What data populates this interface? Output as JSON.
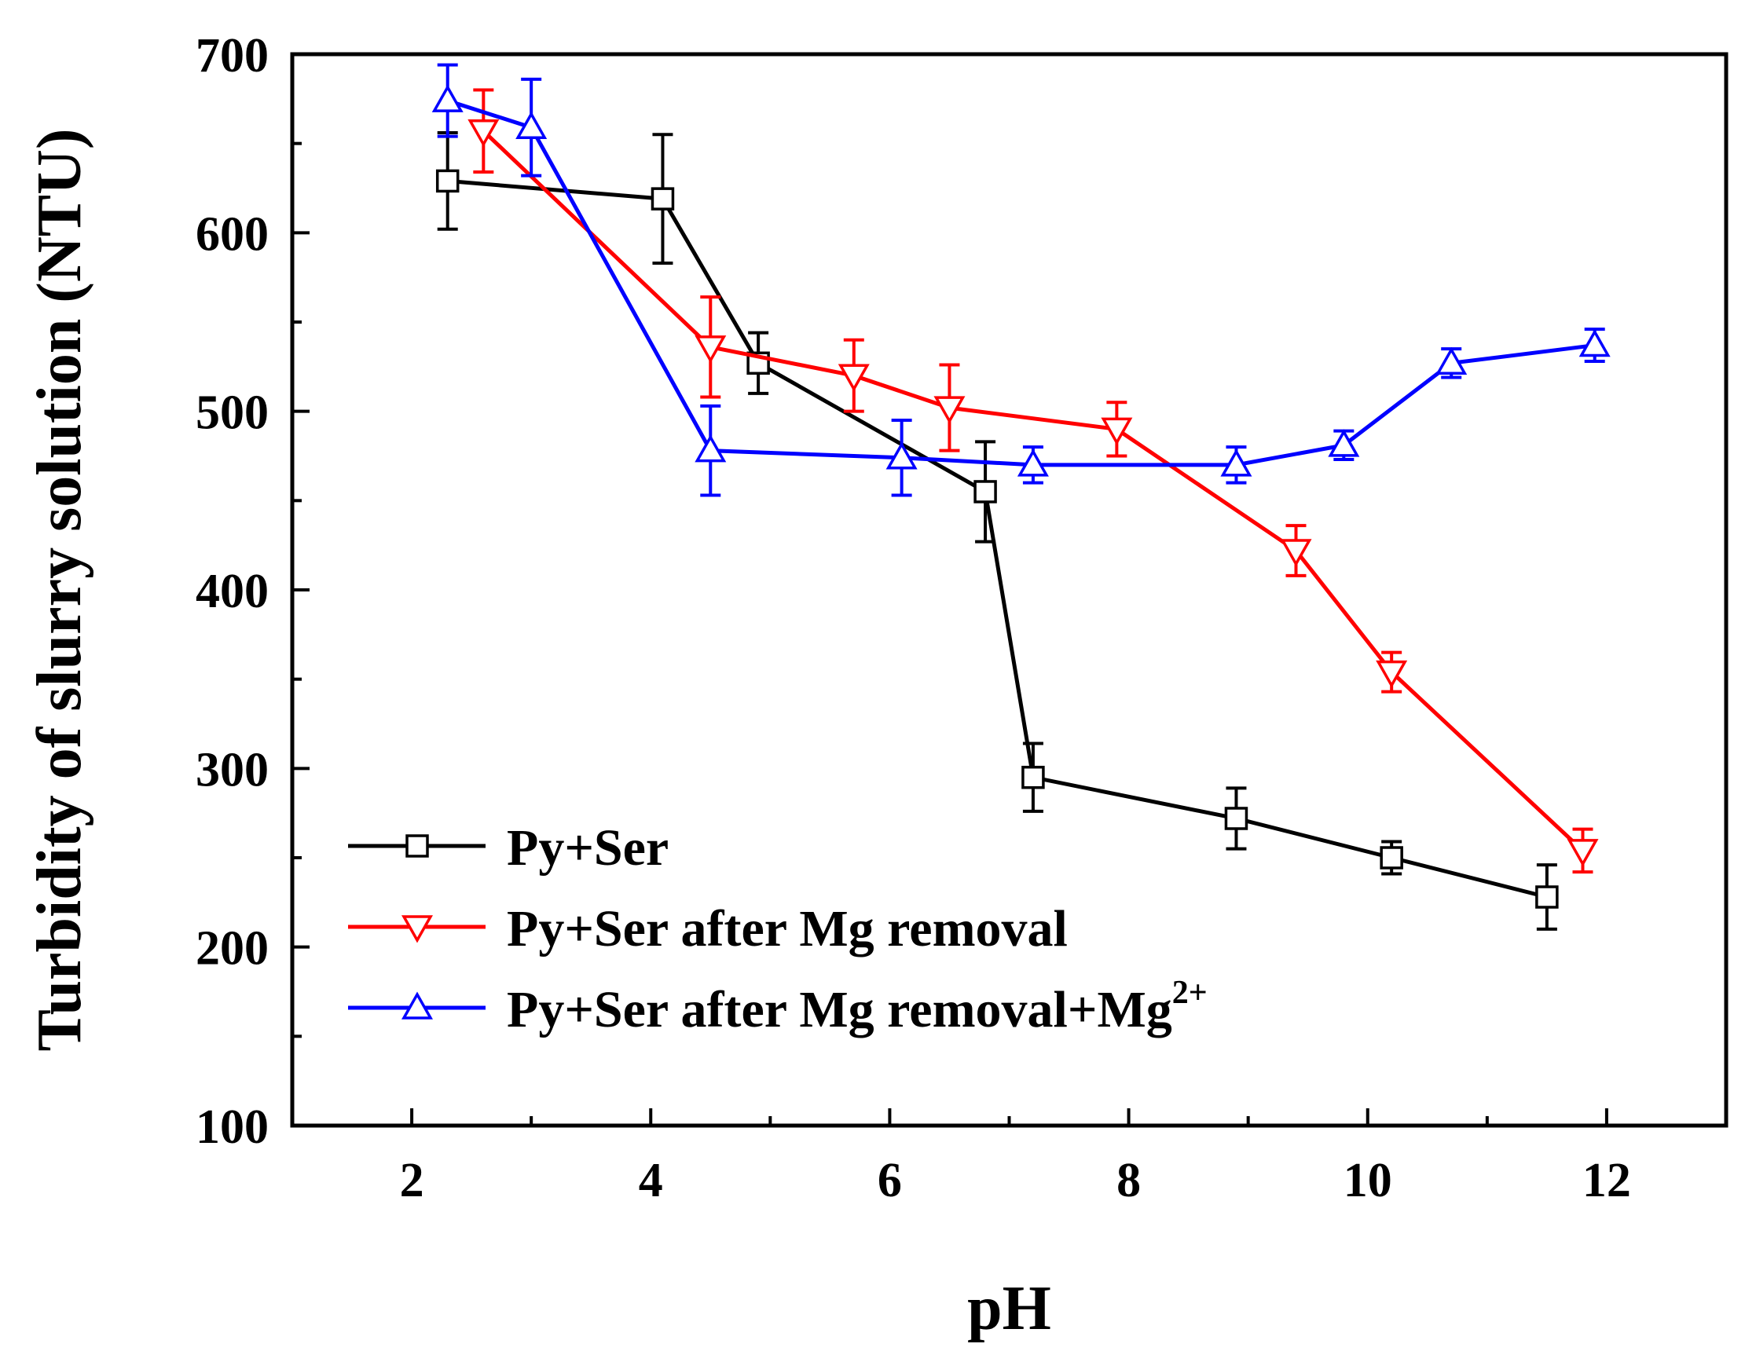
{
  "chart_data": {
    "type": "line",
    "title": "",
    "xlabel": "pH",
    "ylabel": "Turbidity of slurry solution (NTU)",
    "xlim": [
      1.0,
      13.0
    ],
    "ylim": [
      100,
      700
    ],
    "x_ticks": [
      2,
      4,
      6,
      8,
      10,
      12
    ],
    "x_tick_labels": [
      "2",
      "4",
      "6",
      "8",
      "10",
      "12"
    ],
    "y_ticks": [
      100,
      200,
      300,
      400,
      500,
      600,
      700
    ],
    "y_tick_labels": [
      "100",
      "200",
      "300",
      "400",
      "500",
      "600",
      "700"
    ],
    "grid": false,
    "legend_position": "bottom-left",
    "series": [
      {
        "name": "Py+Ser",
        "legend_text": "Py+Ser",
        "legend_sup": "",
        "color": "#000000",
        "marker": "square",
        "x": [
          2.3,
          4.1,
          4.9,
          6.8,
          7.2,
          8.9,
          10.2,
          11.5
        ],
        "y": [
          629,
          619,
          527,
          455,
          295,
          272,
          250,
          228
        ],
        "err": [
          27,
          36,
          17,
          28,
          19,
          17,
          9,
          18
        ]
      },
      {
        "name": "Py+Ser after Mg removal",
        "legend_text": "Py+Ser after Mg removal",
        "legend_sup": "",
        "color": "#ff0000",
        "marker": "triangle-down",
        "x": [
          2.6,
          4.5,
          5.7,
          6.5,
          7.9,
          9.4,
          10.2,
          11.8
        ],
        "y": [
          657,
          536,
          520,
          502,
          490,
          422,
          354,
          254
        ],
        "err": [
          23,
          28,
          20,
          24,
          15,
          14,
          11,
          12
        ]
      },
      {
        "name": "Py+Ser after Mg removal+Mg2+",
        "legend_text": "Py+Ser after Mg removal+Mg",
        "legend_sup": "2+",
        "color": "#0000ff",
        "marker": "triangle-up",
        "x": [
          2.3,
          3.0,
          4.5,
          6.1,
          7.2,
          8.9,
          9.8,
          10.7,
          11.9
        ],
        "y": [
          674,
          659,
          478,
          474,
          470,
          470,
          481,
          527,
          537
        ],
        "err": [
          20,
          27,
          25,
          21,
          10,
          10,
          8,
          8,
          9
        ]
      }
    ]
  }
}
